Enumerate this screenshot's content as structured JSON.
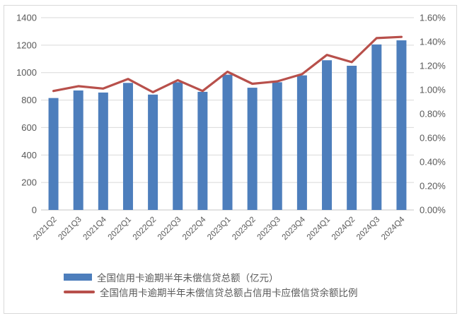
{
  "chart_data": {
    "type": "bar",
    "subtype": "bar-line-combo",
    "title": "",
    "categories": [
      "2021Q2",
      "2021Q3",
      "2021Q4",
      "2022Q1",
      "2022Q2",
      "2022Q3",
      "2022Q4",
      "2023Q1",
      "2023Q2",
      "2023Q3",
      "2023Q4",
      "2024Q1",
      "2024Q2",
      "2024Q3",
      "2024Q4"
    ],
    "series": [
      {
        "name": "全国信用卡逾期半年未偿信贷总额（亿元）",
        "type": "bar",
        "axis": "left",
        "values": [
          815,
          870,
          855,
          925,
          840,
          930,
          860,
          985,
          890,
          930,
          980,
          1090,
          1050,
          1205,
          1235
        ]
      },
      {
        "name": "全国信用卡逾期半年未偿信贷总额占信用卡应偿信贷余额比例",
        "type": "line",
        "axis": "right",
        "values_percent": [
          0.99,
          1.03,
          1.01,
          1.09,
          0.98,
          1.08,
          0.99,
          1.15,
          1.05,
          1.07,
          1.13,
          1.29,
          1.23,
          1.43,
          1.44
        ]
      }
    ],
    "left_axis": {
      "min": 0,
      "max": 1400,
      "step": 200,
      "tick_labels": [
        "0",
        "200",
        "400",
        "600",
        "800",
        "1000",
        "1200",
        "1400"
      ]
    },
    "right_axis": {
      "min": 0,
      "max": 1.6,
      "step": 0.2,
      "tick_labels": [
        "0.00%",
        "0.20%",
        "0.40%",
        "0.60%",
        "0.80%",
        "1.00%",
        "1.20%",
        "1.40%",
        "1.60%"
      ]
    },
    "grid": true,
    "legend_position": "bottom-left"
  },
  "legend": {
    "items": [
      {
        "label": "全国信用卡逾期半年未偿信贷总额（亿元）",
        "marker": "bar"
      },
      {
        "label": "全国信用卡逾期半年未偿信贷总额占信用卡应偿信贷余额比例",
        "marker": "line"
      }
    ]
  },
  "colors": {
    "bar": "#4d7ebc",
    "line": "#b8504b",
    "axis_text": "#595959",
    "gridline": "#d9d9d9",
    "axis_line": "#c6c6c6",
    "frame_border": "#d9d9d9",
    "background": "#ffffff"
  }
}
